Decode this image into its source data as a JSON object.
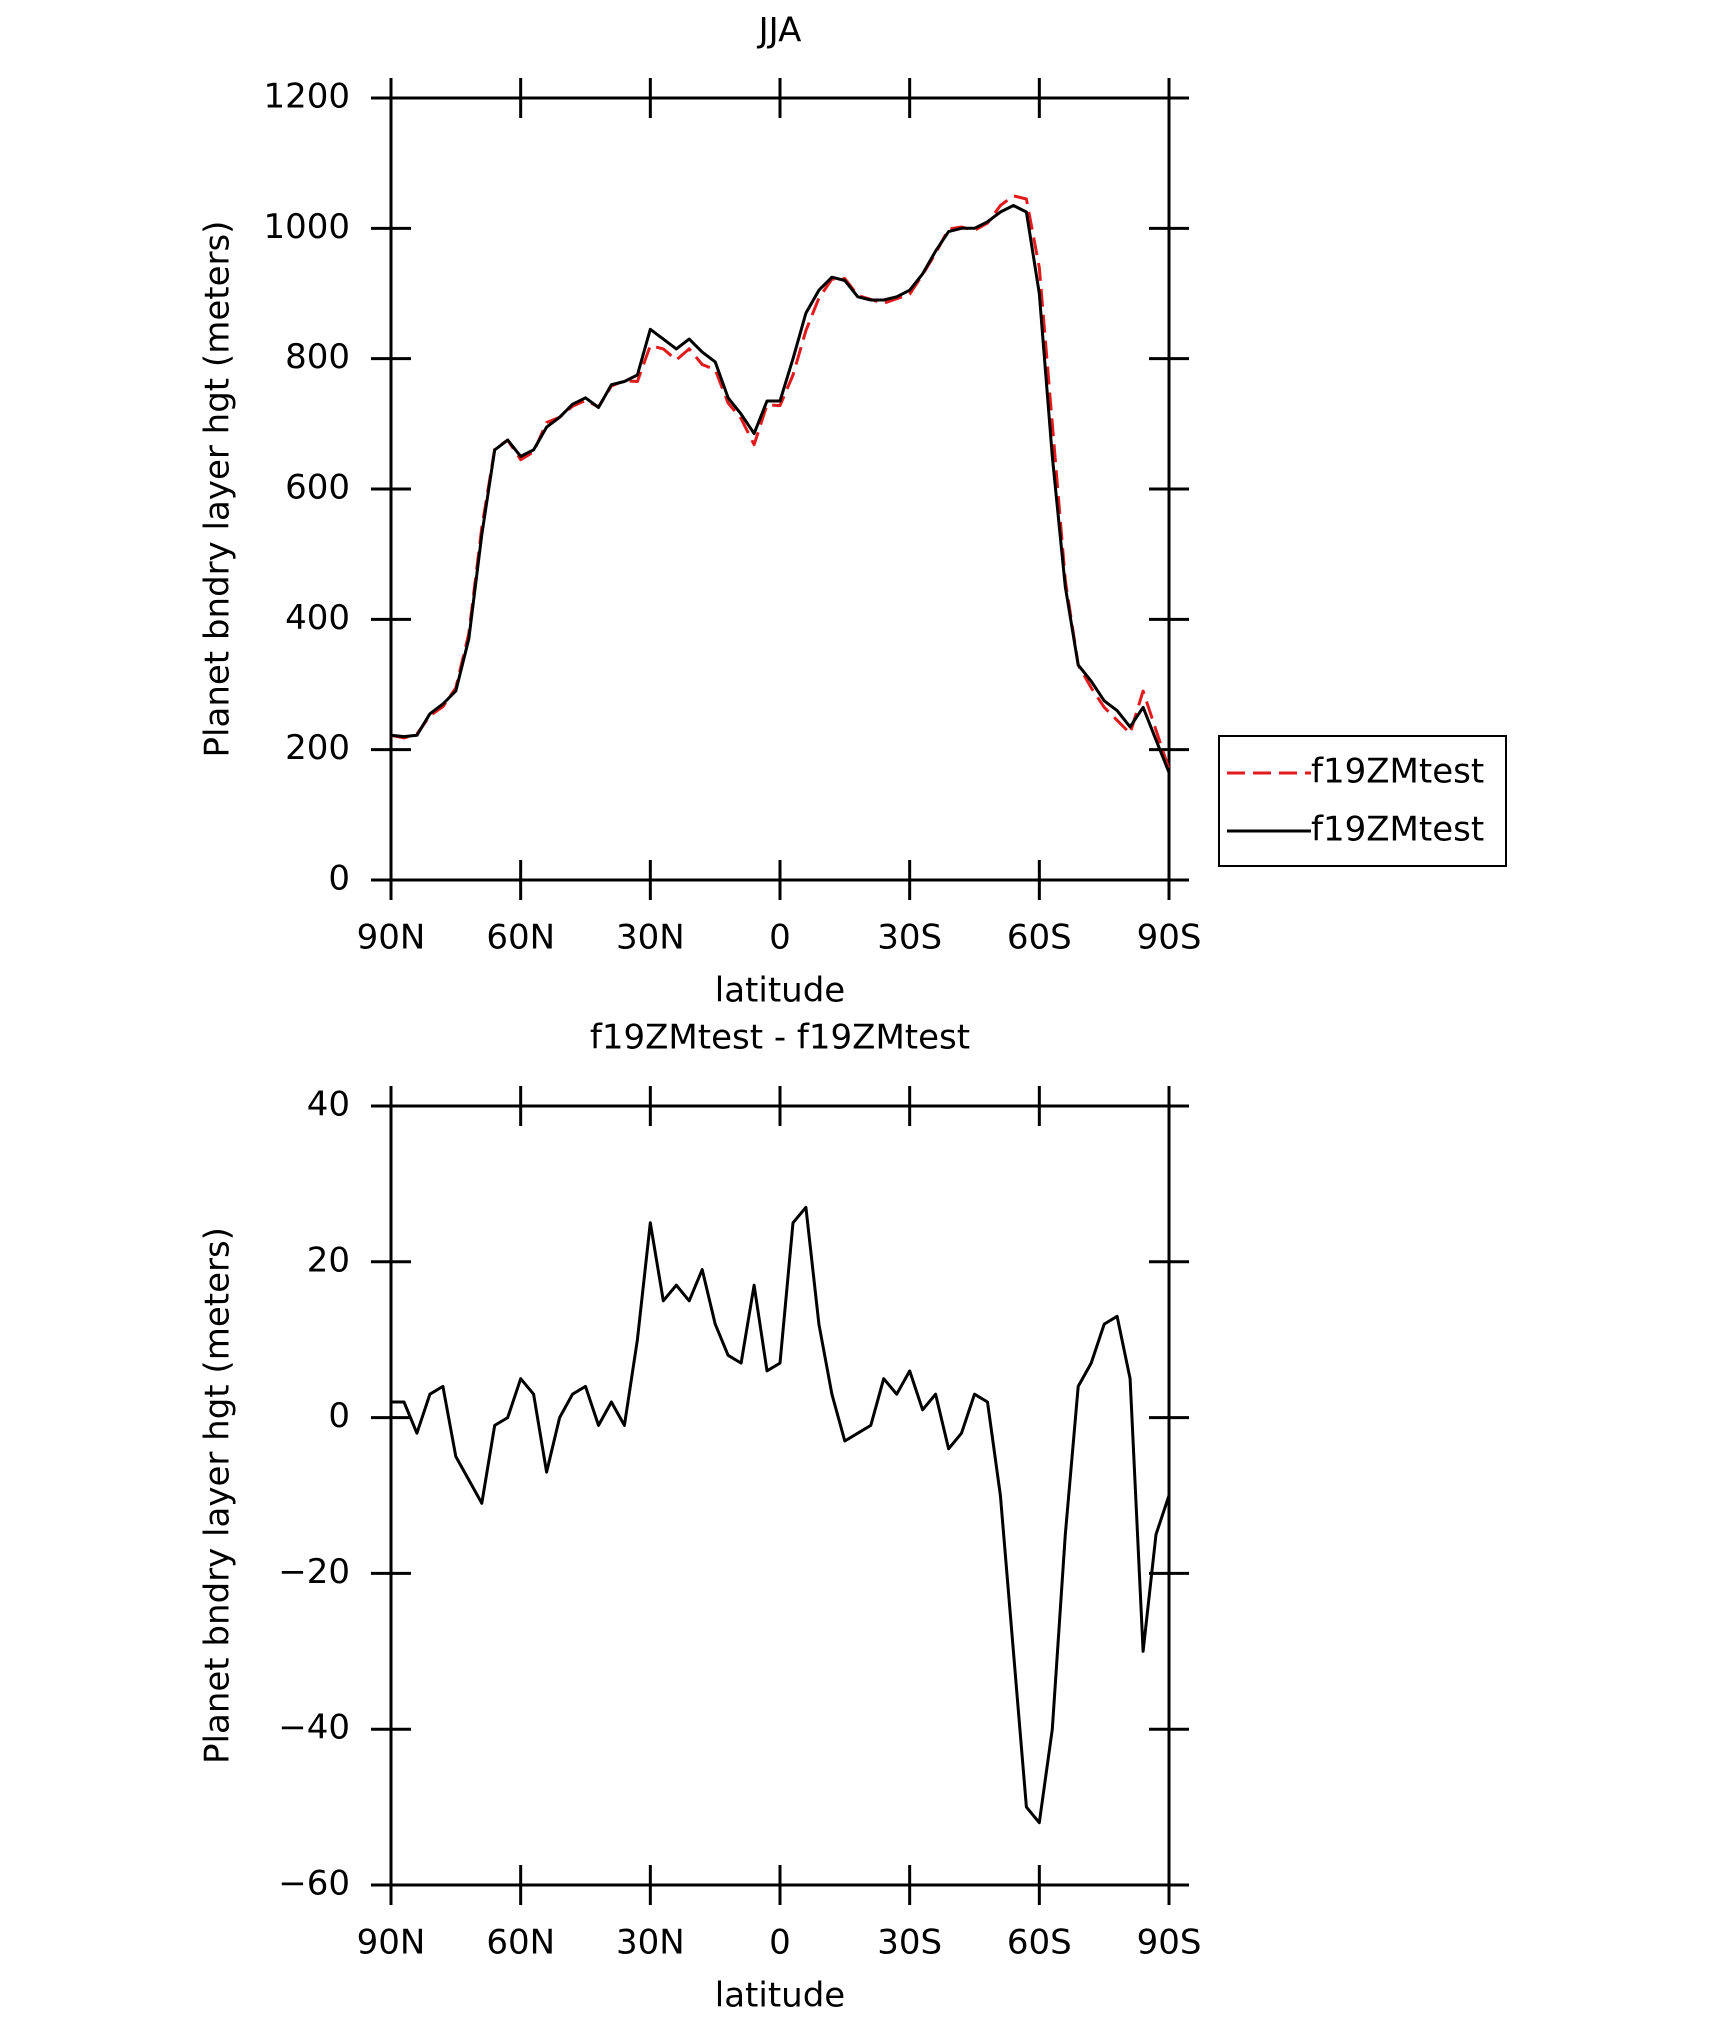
{
  "chart_data": [
    {
      "type": "line",
      "title": "JJA",
      "x_label": "latitude",
      "y_label": "Planet bndry layer hgt (meters)",
      "x": [
        90,
        87,
        84,
        81,
        78,
        75,
        72,
        69,
        66,
        63,
        60,
        57,
        54,
        51,
        48,
        45,
        42,
        39,
        36,
        33,
        30,
        27,
        24,
        21,
        18,
        15,
        12,
        9,
        6,
        3,
        0,
        -3,
        -6,
        -9,
        -12,
        -15,
        -18,
        -21,
        -24,
        -27,
        -30,
        -33,
        -36,
        -39,
        -42,
        -45,
        -48,
        -51,
        -54,
        -57,
        -60,
        -63,
        -66,
        -69,
        -72,
        -75,
        -78,
        -81,
        -84,
        -87,
        -90
      ],
      "xlim": [
        90,
        -90
      ],
      "xticks": [
        {
          "value": 90,
          "label": "90N"
        },
        {
          "value": 60,
          "label": "60N"
        },
        {
          "value": 30,
          "label": "30N"
        },
        0,
        {
          "value": -30,
          "label": "30S"
        },
        {
          "value": -60,
          "label": "60S"
        },
        {
          "value": -90,
          "label": "90S"
        }
      ],
      "ylim": [
        0,
        1200
      ],
      "yticks": [
        0,
        200,
        400,
        600,
        800,
        1000,
        1200
      ],
      "legend": "right",
      "series": [
        {
          "name": "f19ZMtest",
          "color": "#e31a1c",
          "style": "dashed",
          "values": [
            222,
            218,
            224,
            252,
            266,
            295,
            378,
            541,
            661,
            675,
            645,
            657,
            702,
            710,
            727,
            736,
            726,
            758,
            766,
            765,
            820,
            815,
            798,
            815,
            791,
            783,
            732,
            708,
            668,
            729,
            728,
            775,
            843,
            893,
            922,
            923,
            897,
            891,
            885,
            892,
            899,
            929,
            962,
            999,
            1002,
            997,
            1008,
            1035,
            1050,
            1045,
            940,
            700,
            460,
            330,
            295,
            265,
            245,
            225,
            290,
            230,
            170
          ]
        },
        {
          "name": "f19ZMtest",
          "color": "#000000",
          "style": "solid",
          "values": [
            222,
            220,
            222,
            255,
            270,
            290,
            370,
            530,
            660,
            675,
            650,
            660,
            695,
            710,
            730,
            740,
            725,
            760,
            765,
            775,
            845,
            830,
            815,
            830,
            810,
            795,
            740,
            715,
            685,
            735,
            735,
            800,
            870,
            905,
            925,
            920,
            895,
            890,
            890,
            895,
            905,
            930,
            965,
            995,
            1000,
            1000,
            1010,
            1025,
            1035,
            1025,
            900,
            650,
            450,
            330,
            305,
            275,
            260,
            235,
            265,
            215,
            165
          ]
        }
      ]
    },
    {
      "type": "line",
      "title": "f19ZMtest - f19ZMtest",
      "x_label": "latitude",
      "y_label": "Planet bndry layer hgt (meters)",
      "x": [
        90,
        87,
        84,
        81,
        78,
        75,
        72,
        69,
        66,
        63,
        60,
        57,
        54,
        51,
        48,
        45,
        42,
        39,
        36,
        33,
        30,
        27,
        24,
        21,
        18,
        15,
        12,
        9,
        6,
        3,
        0,
        -3,
        -6,
        -9,
        -12,
        -15,
        -18,
        -21,
        -24,
        -27,
        -30,
        -33,
        -36,
        -39,
        -42,
        -45,
        -48,
        -51,
        -54,
        -57,
        -60,
        -63,
        -66,
        -69,
        -72,
        -75,
        -78,
        -81,
        -84,
        -87,
        -90
      ],
      "xlim": [
        90,
        -90
      ],
      "xticks": [
        {
          "value": 90,
          "label": "90N"
        },
        {
          "value": 60,
          "label": "60N"
        },
        {
          "value": 30,
          "label": "30N"
        },
        0,
        {
          "value": -30,
          "label": "30S"
        },
        {
          "value": -60,
          "label": "60S"
        },
        {
          "value": -90,
          "label": "90S"
        }
      ],
      "ylim": [
        -60,
        40
      ],
      "yticks": [
        {
          "value": -60,
          "label": "−60"
        },
        {
          "value": -40,
          "label": "−40"
        },
        {
          "value": -20,
          "label": "−20"
        },
        0,
        20,
        40
      ],
      "series": [
        {
          "color": "#000000",
          "style": "solid",
          "values": [
            2,
            2,
            -2,
            3,
            4,
            -5,
            -8,
            -11,
            -1,
            0,
            5,
            3,
            -7,
            0,
            3,
            4,
            -1,
            2,
            -1,
            10,
            25,
            15,
            17,
            15,
            19,
            12,
            8,
            7,
            17,
            6,
            7,
            25,
            27,
            12,
            3,
            -3,
            -2,
            -1,
            5,
            3,
            6,
            1,
            3,
            -4,
            -2,
            3,
            2,
            -10,
            -30,
            -50,
            -52,
            -40,
            -15,
            4,
            7,
            12,
            13,
            5,
            -30,
            -15,
            -10
          ]
        }
      ]
    }
  ]
}
